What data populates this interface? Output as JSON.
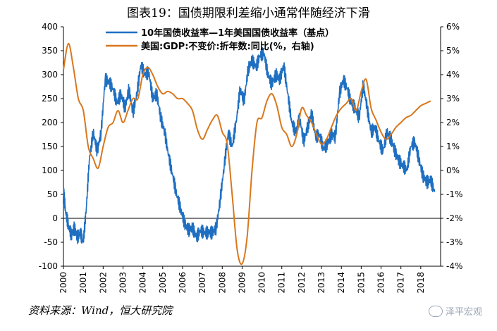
{
  "title": "图表19：国债期限利差缩小通常伴随经济下滑",
  "source": "资料来源：Wind，恒大研究院",
  "watermark": "泽平宏观",
  "colors": {
    "spread": "#1f6fc1",
    "gdp": "#d9771c",
    "axis": "#000000"
  },
  "chart_data": {
    "type": "line",
    "title": "图表19：国债期限利差缩小通常伴随经济下滑",
    "x_ticks": [
      "2000",
      "2001",
      "2002",
      "2003",
      "2004",
      "2005",
      "2006",
      "2007",
      "2008",
      "2009",
      "2010",
      "2011",
      "2012",
      "2013",
      "2014",
      "2015",
      "2016",
      "2017",
      "2018"
    ],
    "xlim": [
      2000,
      2019
    ],
    "left_axis": {
      "ylim": [
        -100,
        400
      ],
      "ticks": [
        "400",
        "350",
        "300",
        "250",
        "200",
        "150",
        "100",
        "50",
        "0",
        "-50",
        "-100"
      ]
    },
    "right_axis": {
      "ylim": [
        -4,
        6
      ],
      "ticks": [
        "6%",
        "5%",
        "4%",
        "3%",
        "2%",
        "1%",
        "0%",
        "-1%",
        "-2%",
        "-3%",
        "-4%"
      ]
    },
    "series": [
      {
        "name": "10年国债收益率—1年美国国债收益率（基点）",
        "axis": "left",
        "color": "#1f6fc1",
        "x": [
          2000.0,
          2000.1,
          2000.25,
          2000.4,
          2000.55,
          2000.7,
          2000.85,
          2001.0,
          2001.15,
          2001.3,
          2001.5,
          2001.7,
          2001.9,
          2002.1,
          2002.3,
          2002.5,
          2002.7,
          2002.9,
          2003.1,
          2003.3,
          2003.5,
          2003.7,
          2003.9,
          2004.1,
          2004.3,
          2004.5,
          2004.7,
          2004.9,
          2005.1,
          2005.3,
          2005.5,
          2005.7,
          2005.9,
          2006.1,
          2006.3,
          2006.5,
          2006.7,
          2006.9,
          2007.1,
          2007.3,
          2007.5,
          2007.7,
          2007.9,
          2008.1,
          2008.3,
          2008.5,
          2008.7,
          2008.9,
          2009.1,
          2009.3,
          2009.5,
          2009.7,
          2009.9,
          2010.1,
          2010.3,
          2010.5,
          2010.7,
          2010.9,
          2011.1,
          2011.3,
          2011.5,
          2011.7,
          2011.9,
          2012.1,
          2012.3,
          2012.5,
          2012.7,
          2012.9,
          2013.1,
          2013.3,
          2013.5,
          2013.7,
          2013.9,
          2014.1,
          2014.3,
          2014.5,
          2014.7,
          2014.9,
          2015.1,
          2015.3,
          2015.5,
          2015.7,
          2015.9,
          2016.1,
          2016.3,
          2016.5,
          2016.7,
          2016.9,
          2017.1,
          2017.3,
          2017.5,
          2017.7,
          2017.9,
          2018.1,
          2018.3,
          2018.5,
          2018.7
        ],
        "values": [
          65,
          15,
          -15,
          -35,
          -20,
          -40,
          -30,
          -50,
          20,
          120,
          180,
          140,
          180,
          290,
          285,
          270,
          240,
          260,
          230,
          270,
          220,
          260,
          320,
          300,
          305,
          250,
          260,
          210,
          180,
          130,
          90,
          50,
          20,
          -10,
          -25,
          -20,
          -40,
          -25,
          -30,
          -30,
          -30,
          -20,
          40,
          110,
          180,
          150,
          200,
          270,
          245,
          310,
          330,
          315,
          340,
          345,
          300,
          280,
          300,
          290,
          320,
          260,
          200,
          180,
          210,
          160,
          190,
          220,
          170,
          175,
          145,
          155,
          175,
          170,
          260,
          290,
          270,
          240,
          230,
          210,
          280,
          230,
          180,
          190,
          160,
          140,
          180,
          165,
          140,
          120,
          110,
          100,
          150,
          160,
          125,
          90,
          75,
          80,
          55
        ]
      },
      {
        "name": "美国:GDP:不变价:折年数:同比(%，右轴)",
        "axis": "right",
        "color": "#d9771c",
        "x": [
          2000.0,
          2000.25,
          2000.5,
          2000.75,
          2001.0,
          2001.25,
          2001.5,
          2001.75,
          2002.0,
          2002.25,
          2002.5,
          2002.75,
          2003.0,
          2003.25,
          2003.5,
          2003.75,
          2004.0,
          2004.25,
          2004.5,
          2004.75,
          2005.0,
          2005.25,
          2005.5,
          2005.75,
          2006.0,
          2006.25,
          2006.5,
          2006.75,
          2007.0,
          2007.25,
          2007.5,
          2007.75,
          2008.0,
          2008.25,
          2008.5,
          2008.75,
          2009.0,
          2009.25,
          2009.5,
          2009.75,
          2010.0,
          2010.25,
          2010.5,
          2010.75,
          2011.0,
          2011.25,
          2011.5,
          2011.75,
          2012.0,
          2012.25,
          2012.5,
          2012.75,
          2013.0,
          2013.25,
          2013.5,
          2013.75,
          2014.0,
          2014.25,
          2014.5,
          2014.75,
          2015.0,
          2015.25,
          2015.5,
          2015.75,
          2016.0,
          2016.25,
          2016.5,
          2016.75,
          2017.0,
          2017.25,
          2017.5,
          2017.75,
          2018.0,
          2018.25,
          2018.5
        ],
        "values": [
          4.2,
          5.3,
          4.3,
          3.0,
          2.5,
          1.0,
          0.5,
          0.1,
          1.0,
          1.8,
          2.0,
          2.5,
          2.0,
          2.5,
          3.0,
          3.0,
          4.0,
          4.3,
          4.0,
          3.5,
          3.2,
          3.3,
          3.2,
          3.0,
          3.0,
          2.8,
          2.5,
          1.7,
          1.3,
          1.7,
          2.1,
          2.3,
          1.6,
          1.1,
          -1.0,
          -3.3,
          -3.9,
          -2.8,
          0.0,
          2.0,
          2.2,
          2.9,
          3.2,
          2.7,
          1.8,
          1.5,
          1.0,
          1.5,
          2.6,
          2.3,
          2.0,
          1.5,
          1.1,
          1.3,
          1.8,
          2.3,
          2.6,
          2.8,
          3.0,
          2.5,
          3.3,
          3.8,
          2.6,
          2.1,
          1.6,
          1.3,
          1.5,
          1.8,
          2.0,
          2.2,
          2.3,
          2.5,
          2.7,
          2.8,
          2.9
        ]
      }
    ]
  }
}
